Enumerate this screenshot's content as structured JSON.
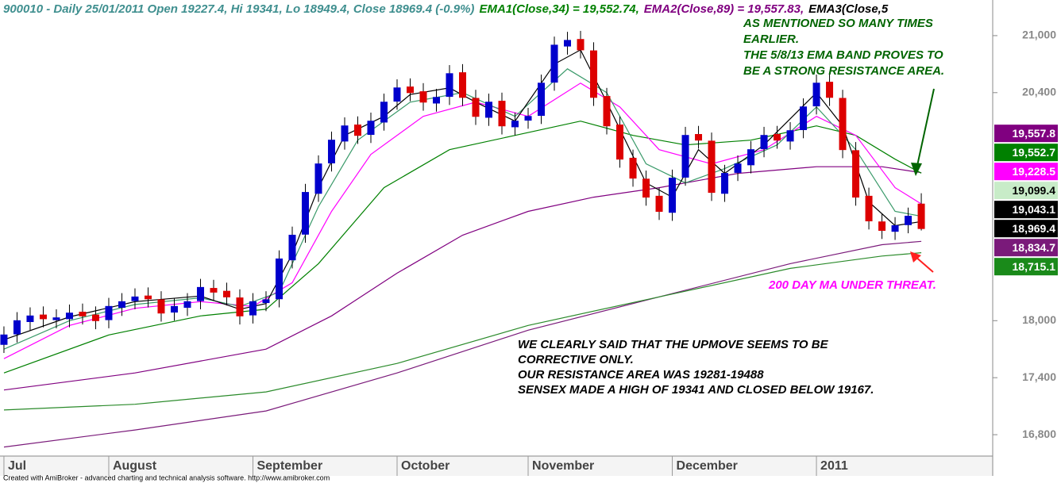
{
  "chart_data": {
    "type": "candlestick",
    "title": [
      {
        "text": "900010 - Daily 25/01/2011 Open 19227.4, Hi 19341, Lo 18949.4, Close 18969.4 (-0.9%)",
        "color": "#3f8f8f"
      },
      {
        "text": "EMA1(Close,34) = 19,552.74,",
        "color": "#008000"
      },
      {
        "text": "EMA2(Close,89) = 19,557.83,",
        "color": "#800080"
      },
      {
        "text": "EMA3(Close,5",
        "color": "#000000"
      }
    ],
    "xlim": [
      -0.6,
      150.9
    ],
    "ylim": [
      16575,
      21375
    ],
    "yticks": [
      {
        "value": 21000,
        "label": "21,000"
      },
      {
        "value": 20400,
        "label": "20,400"
      },
      {
        "value": 18000,
        "label": "18,000"
      },
      {
        "value": 17400,
        "label": "17,400"
      },
      {
        "value": 16800,
        "label": "16,800"
      }
    ],
    "xticks": [
      {
        "value": 0,
        "label": "Jul"
      },
      {
        "value": 16,
        "label": "August"
      },
      {
        "value": 38,
        "label": "September"
      },
      {
        "value": 60,
        "label": "October"
      },
      {
        "value": 80,
        "label": "November"
      },
      {
        "value": 102,
        "label": "December"
      },
      {
        "value": 124,
        "label": "2011"
      }
    ],
    "up_color": "#0000cc",
    "down_color": "#dd0000",
    "x": [
      0,
      2,
      4,
      6,
      8,
      10,
      12,
      14,
      16,
      18,
      20,
      22,
      24,
      26,
      28,
      30,
      32,
      34,
      36,
      38,
      40,
      42,
      44,
      46,
      48,
      50,
      52,
      54,
      56,
      58,
      60,
      62,
      64,
      66,
      68,
      70,
      72,
      74,
      76,
      78,
      80,
      82,
      84,
      86,
      88,
      90,
      92,
      94,
      96,
      98,
      100,
      102,
      104,
      106,
      108,
      110,
      112,
      114,
      116,
      118,
      120,
      122,
      124,
      126,
      128,
      130,
      132,
      134,
      136,
      138,
      140
    ],
    "open": [
      17750,
      17860,
      17990,
      18060,
      18010,
      18020,
      18090,
      18060,
      18010,
      18140,
      18210,
      18260,
      18220,
      18090,
      18140,
      18210,
      18340,
      18310,
      18240,
      18060,
      18190,
      18230,
      18640,
      18910,
      19340,
      19660,
      19890,
      20060,
      19960,
      20090,
      20310,
      20460,
      20410,
      20290,
      20360,
      20610,
      20340,
      20140,
      20310,
      20040,
      20110,
      20160,
      20510,
      20890,
      20960,
      20840,
      20360,
      20060,
      19710,
      19490,
      19310,
      19140,
      19510,
      19960,
      19890,
      19340,
      19560,
      19640,
      19810,
      19960,
      19890,
      20010,
      20260,
      20510,
      20340,
      19790,
      19310,
      19040,
      18940,
      19010,
      19227.4
    ],
    "high": [
      17940,
      18090,
      18140,
      18150,
      18120,
      18170,
      18180,
      18150,
      18240,
      18290,
      18340,
      18350,
      18310,
      18240,
      18290,
      18440,
      18430,
      18400,
      18330,
      18290,
      18310,
      18740,
      18990,
      19440,
      19740,
      19990,
      20140,
      20150,
      20190,
      20390,
      20540,
      20550,
      20500,
      20440,
      20690,
      20700,
      20430,
      20390,
      20400,
      20190,
      20240,
      20590,
      20990,
      21040,
      21050,
      20930,
      20450,
      20150,
      19800,
      19580,
      19400,
      19590,
      20040,
      20050,
      19980,
      19640,
      19740,
      19890,
      20040,
      20050,
      20090,
      20340,
      20590,
      20600,
      20430,
      19880,
      19400,
      19130,
      19090,
      19190,
      19341
    ],
    "low": [
      17660,
      17770,
      17900,
      17930,
      17920,
      17930,
      17960,
      17910,
      17920,
      18050,
      18120,
      18140,
      17990,
      18000,
      18050,
      18120,
      18210,
      18160,
      17960,
      17970,
      18100,
      18140,
      18550,
      18820,
      19250,
      19570,
      19800,
      19860,
      19870,
      20000,
      20220,
      20310,
      20210,
      20200,
      20270,
      20260,
      20060,
      20050,
      19960,
      19950,
      20020,
      20070,
      20420,
      20800,
      20760,
      20260,
      19960,
      19610,
      19410,
      19210,
      19060,
      19050,
      19420,
      19810,
      19260,
      19250,
      19470,
      19550,
      19720,
      19810,
      19800,
      19920,
      20170,
      20260,
      19710,
      19210,
      18960,
      18860,
      18850,
      18920,
      18949.4
    ],
    "close": [
      17850,
      18000,
      18050,
      18020,
      18030,
      18080,
      18050,
      18000,
      18150,
      18200,
      18250,
      18230,
      18080,
      18150,
      18200,
      18350,
      18300,
      18250,
      18050,
      18200,
      18220,
      18650,
      18900,
      19350,
      19650,
      19900,
      20050,
      19950,
      20100,
      20300,
      20450,
      20400,
      20300,
      20350,
      20600,
      20350,
      20150,
      20300,
      20050,
      20100,
      20150,
      20500,
      20900,
      20950,
      20850,
      20350,
      20050,
      19700,
      19500,
      19300,
      19150,
      19500,
      19950,
      19900,
      19350,
      19550,
      19650,
      19800,
      19950,
      19900,
      20000,
      20250,
      20500,
      20350,
      19800,
      19300,
      19050,
      18950,
      19000,
      19100,
      18969.4
    ],
    "lines": [
      {
        "color": "#7a1a7a",
        "x": [
          0,
          20,
          40,
          60,
          80,
          100,
          120,
          134,
          140
        ],
        "values": [
          16670,
          16850,
          17050,
          17450,
          17900,
          18250,
          18600,
          18800,
          18834.7
        ]
      },
      {
        "color": "#2a8a2a",
        "x": [
          0,
          20,
          40,
          60,
          80,
          100,
          120,
          134,
          140
        ],
        "values": [
          17060,
          17120,
          17250,
          17550,
          17950,
          18250,
          18550,
          18680,
          18715.1
        ]
      },
      {
        "color": "#800080",
        "x": [
          0,
          20,
          40,
          50,
          60,
          70,
          80,
          90,
          100,
          112,
          124,
          134,
          140
        ],
        "values": [
          17270,
          17450,
          17700,
          18050,
          18500,
          18900,
          19150,
          19300,
          19400,
          19550,
          19620,
          19620,
          19557.8
        ]
      },
      {
        "color": "#008000",
        "x": [
          0,
          16,
          30,
          40,
          48,
          58,
          68,
          78,
          88,
          96,
          104,
          114,
          124,
          130,
          136,
          140
        ],
        "values": [
          17450,
          17850,
          18050,
          18120,
          18600,
          19400,
          19800,
          19950,
          20100,
          19950,
          19850,
          19900,
          20050,
          19950,
          19700,
          19552.7
        ]
      },
      {
        "color": "#ff00ff",
        "x": [
          0,
          10,
          20,
          30,
          38,
          44,
          50,
          56,
          64,
          72,
          80,
          88,
          94,
          100,
          108,
          116,
          124,
          130,
          136,
          140
        ],
        "values": [
          17600,
          17950,
          18130,
          18200,
          18150,
          18400,
          19150,
          19750,
          20150,
          20300,
          20150,
          20500,
          20250,
          19800,
          19650,
          19800,
          20150,
          19950,
          19400,
          19228.5
        ]
      },
      {
        "color": "#3a9a6a",
        "x": [
          0,
          10,
          20,
          30,
          36,
          42,
          48,
          54,
          62,
          70,
          78,
          86,
          92,
          98,
          104,
          110,
          118,
          124,
          130,
          136,
          140
        ],
        "values": [
          17700,
          18000,
          18170,
          18240,
          18150,
          18300,
          19200,
          19900,
          20300,
          20400,
          20150,
          20650,
          20400,
          19650,
          19450,
          19600,
          19850,
          20250,
          19800,
          19150,
          19099.4
        ]
      },
      {
        "color": "#000000",
        "x": [
          0,
          10,
          20,
          30,
          36,
          40,
          44,
          48,
          52,
          58,
          62,
          68,
          72,
          78,
          84,
          88,
          92,
          98,
          102,
          106,
          110,
          116,
          124,
          128,
          132,
          136,
          140
        ],
        "values": [
          17800,
          18040,
          18200,
          18260,
          18120,
          18180,
          18700,
          19400,
          19950,
          20150,
          20380,
          20450,
          20300,
          20100,
          20700,
          20850,
          20300,
          19450,
          19300,
          19800,
          19550,
          19850,
          20400,
          20050,
          19250,
          19000,
          19043.1
        ]
      }
    ],
    "last_value_labels": [
      {
        "value": 19557.8,
        "label": "19,557.8",
        "color": "#800080",
        "text_color": "#ffffff"
      },
      {
        "value": 19552.7,
        "label": "19,552.7",
        "color": "#008000",
        "text_color": "#ffffff"
      },
      {
        "value": 19228.5,
        "label": "19,228.5",
        "color": "#ff00ff",
        "text_color": "#ffffff"
      },
      {
        "value": 19099.4,
        "label": "19,099.4",
        "color": "#c8ecc8",
        "text_color": "#000000"
      },
      {
        "value": 19043.1,
        "label": "19,043.1",
        "color": "#000000",
        "text_color": "#ffffff"
      },
      {
        "value": 18969.4,
        "label": "18,969.4",
        "color": "#000000",
        "text_color": "#ffffff"
      },
      {
        "value": 18834.7,
        "label": "18,834.7",
        "color": "#7a1a7a",
        "text_color": "#ffffff"
      },
      {
        "value": 18715.1,
        "label": "18,715.1",
        "color": "#1a8a1a",
        "text_color": "#ffffff"
      }
    ],
    "annotations": [
      {
        "color": "#006400",
        "lines": [
          "AS MENTIONED SO MANY TIMES",
          "EARLIER.",
          "THE 5/8/13 EMA BAND PROVES TO",
          "BE A STRONG RESISTANCE AREA."
        ]
      },
      {
        "color": "#ff00ff",
        "lines": [
          "200 DAY MA UNDER THREAT."
        ]
      },
      {
        "color": "#000000",
        "lines": [
          "WE CLEARLY SAID THAT THE UPMOVE SEEMS TO BE",
          "CORRECTIVE ONLY.",
          "OUR RESISTANCE AREA WAS 19281-19488",
          "SENSEX MADE A HIGH OF 19341 AND CLOSED BELOW 19167."
        ]
      }
    ],
    "footer": "Created with AmiBroker - advanced charting and technical analysis software. http://www.amibroker.com"
  }
}
